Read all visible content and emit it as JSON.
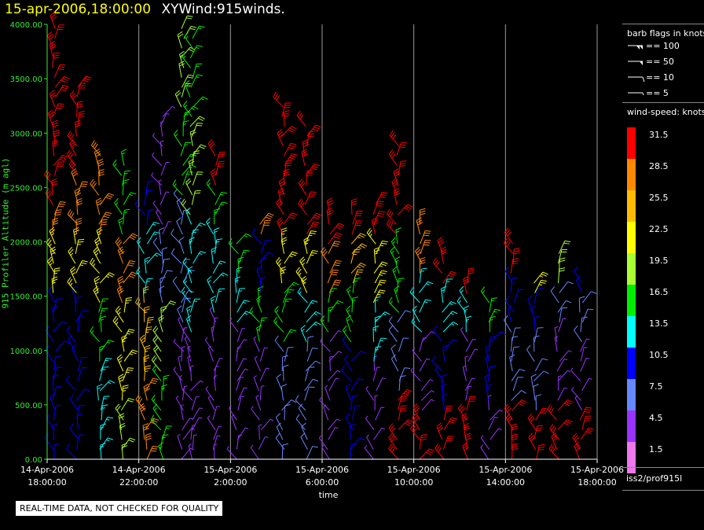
{
  "header": {
    "timestamp": "15-apr-2006,18:00:00",
    "title": "XYWind:915winds."
  },
  "note": "REAL-TIME DATA, NOT CHECKED FOR QUALITY",
  "source_label": "iss2/prof915l",
  "legend": {
    "barb_header": "barb flags in knots",
    "barb_items": [
      {
        "label": "== 100",
        "kind": "flag100"
      },
      {
        "label": "== 50",
        "kind": "flag50"
      },
      {
        "label": "== 10",
        "kind": "barb10"
      },
      {
        "label": "== 5",
        "kind": "barb5"
      }
    ],
    "speed_header": "wind-speed: knots",
    "speed_bins": [
      {
        "label": "31.5",
        "color": "#ff0000"
      },
      {
        "label": "28.5",
        "color": "#ff8800"
      },
      {
        "label": "25.5",
        "color": "#ffbb00"
      },
      {
        "label": "22.5",
        "color": "#ffff00"
      },
      {
        "label": "19.5",
        "color": "#aaff33"
      },
      {
        "label": "16.5",
        "color": "#00ee00"
      },
      {
        "label": "13.5",
        "color": "#00ffff"
      },
      {
        "label": "10.5",
        "color": "#0000ff"
      },
      {
        "label": "7.5",
        "color": "#6688ff"
      },
      {
        "label": "4.5",
        "color": "#9933ff"
      },
      {
        "label": "1.5",
        "color": "#ee77ee"
      }
    ]
  },
  "chart_data": {
    "type": "scatter",
    "subtype": "wind-barb time-height plot",
    "ylabel": "915 Profiler Altitude (m agl)",
    "xlabel": "time",
    "ylim": [
      0,
      4000
    ],
    "yticks": [
      "0.00",
      "500.00",
      "1000.00",
      "1500.00",
      "2000.00",
      "2500.00",
      "3000.00",
      "3500.00",
      "4000.00"
    ],
    "x_range_hours": [
      0,
      24
    ],
    "xticks": [
      {
        "hour": 0,
        "date": "14-Apr-2006",
        "time": "18:00:00"
      },
      {
        "hour": 4,
        "date": "14-Apr-2006",
        "time": "22:00:00"
      },
      {
        "hour": 8,
        "date": "15-Apr-2006",
        "time": "2:00:00"
      },
      {
        "hour": 12,
        "date": "15-Apr-2006",
        "time": "6:00:00"
      },
      {
        "hour": 16,
        "date": "15-Apr-2006",
        "time": "10:00:00"
      },
      {
        "hour": 20,
        "date": "15-Apr-2006",
        "time": "14:00:00"
      },
      {
        "hour": 24,
        "date": "15-Apr-2006",
        "time": "18:00:00"
      }
    ],
    "grid": "vertical lines at x ticks",
    "profile_times_hours": [
      0.3,
      1.3,
      2.3,
      3.3,
      4.3,
      5.0,
      5.9,
      6.3,
      7.3,
      8.3,
      9.3,
      10.3,
      11.3,
      12.3,
      13.3,
      14.3,
      15.3,
      16.3,
      17.3,
      18.3,
      19.3,
      20.3,
      21.3,
      22.3,
      23.3
    ],
    "profiles": [
      {
        "top_m": 4000,
        "bands": [
          [
            0,
            1500,
            10.5
          ],
          [
            1500,
            2000,
            22.5
          ],
          [
            2000,
            2300,
            28.5
          ],
          [
            2300,
            4000,
            31.5
          ]
        ]
      },
      {
        "top_m": 3500,
        "bands": [
          [
            0,
            1500,
            10.5
          ],
          [
            1500,
            2000,
            22.5
          ],
          [
            2000,
            2600,
            28.5
          ],
          [
            2600,
            3500,
            31.5
          ]
        ]
      },
      {
        "top_m": 2800,
        "bands": [
          [
            0,
            900,
            13.5
          ],
          [
            900,
            1400,
            16.5
          ],
          [
            1400,
            2000,
            22.5
          ],
          [
            2000,
            2800,
            28.5
          ]
        ]
      },
      {
        "top_m": 2700,
        "bands": [
          [
            0,
            500,
            19.5
          ],
          [
            500,
            1400,
            22.5
          ],
          [
            1400,
            2000,
            28.5
          ],
          [
            2000,
            2700,
            16.5
          ]
        ]
      },
      {
        "top_m": 2500,
        "bands": [
          [
            0,
            700,
            28.5
          ],
          [
            700,
            1500,
            25.5
          ],
          [
            1500,
            2100,
            13.5
          ],
          [
            2100,
            2500,
            10.5
          ]
        ]
      },
      {
        "top_m": 3200,
        "bands": [
          [
            0,
            800,
            16.5
          ],
          [
            800,
            1400,
            19.5
          ],
          [
            1400,
            2000,
            7.5
          ],
          [
            2000,
            3200,
            4.5
          ]
        ]
      },
      {
        "top_m": 4000,
        "bands": [
          [
            0,
            1200,
            4.5
          ],
          [
            1200,
            2400,
            7.5
          ],
          [
            2400,
            3200,
            16.5
          ],
          [
            3200,
            4000,
            19.5
          ]
        ]
      },
      {
        "top_m": 3900,
        "bands": [
          [
            0,
            1100,
            4.5
          ],
          [
            1100,
            2200,
            13.5
          ],
          [
            2200,
            3100,
            19.5
          ],
          [
            3100,
            3900,
            16.5
          ]
        ]
      },
      {
        "top_m": 2800,
        "bands": [
          [
            0,
            1300,
            4.5
          ],
          [
            1300,
            2100,
            13.5
          ],
          [
            2100,
            2500,
            16.5
          ],
          [
            2500,
            2800,
            31.5
          ]
        ]
      },
      {
        "top_m": 2000,
        "bands": [
          [
            0,
            1200,
            4.5
          ],
          [
            1200,
            1700,
            13.5
          ],
          [
            1700,
            2000,
            16.5
          ]
        ]
      },
      {
        "top_m": 2200,
        "bands": [
          [
            0,
            1000,
            4.5
          ],
          [
            1000,
            1500,
            16.5
          ],
          [
            1500,
            2000,
            10.5
          ],
          [
            2000,
            2200,
            28.5
          ]
        ]
      },
      {
        "top_m": 3300,
        "bands": [
          [
            0,
            1000,
            7.5
          ],
          [
            1000,
            1600,
            16.5
          ],
          [
            1600,
            2000,
            22.5
          ],
          [
            2000,
            3300,
            31.5
          ]
        ]
      },
      {
        "top_m": 3100,
        "bands": [
          [
            0,
            1000,
            7.5
          ],
          [
            1000,
            1500,
            13.5
          ],
          [
            1500,
            2000,
            22.5
          ],
          [
            2000,
            3100,
            31.5
          ]
        ]
      },
      {
        "top_m": 2300,
        "bands": [
          [
            0,
            1100,
            4.5
          ],
          [
            1100,
            1500,
            16.5
          ],
          [
            1500,
            1900,
            28.5
          ],
          [
            1900,
            2300,
            31.5
          ]
        ]
      },
      {
        "top_m": 2300,
        "bands": [
          [
            0,
            1000,
            10.5
          ],
          [
            1000,
            1600,
            16.5
          ],
          [
            1600,
            2000,
            25.5
          ],
          [
            2000,
            2300,
            31.5
          ]
        ]
      },
      {
        "top_m": 2400,
        "bands": [
          [
            0,
            900,
            4.5
          ],
          [
            900,
            1400,
            13.5
          ],
          [
            1400,
            2000,
            22.5
          ],
          [
            2000,
            2400,
            31.5
          ]
        ]
      },
      {
        "top_m": 2900,
        "bands": [
          [
            0,
            600,
            31.5
          ],
          [
            600,
            1300,
            7.5
          ],
          [
            1300,
            2000,
            16.5
          ],
          [
            2000,
            2900,
            31.5
          ]
        ]
      },
      {
        "top_m": 2200,
        "bands": [
          [
            0,
            400,
            31.5
          ],
          [
            400,
            1100,
            4.5
          ],
          [
            1100,
            1700,
            13.5
          ],
          [
            1700,
            2200,
            28.5
          ]
        ]
      },
      {
        "top_m": 1900,
        "bands": [
          [
            0,
            400,
            31.5
          ],
          [
            400,
            1100,
            10.5
          ],
          [
            1100,
            1600,
            13.5
          ],
          [
            1600,
            1900,
            31.5
          ]
        ]
      },
      {
        "top_m": 1700,
        "bands": [
          [
            0,
            500,
            31.5
          ],
          [
            500,
            1100,
            4.5
          ],
          [
            1100,
            1500,
            13.5
          ],
          [
            1500,
            1700,
            31.5
          ]
        ]
      },
      {
        "top_m": 1500,
        "bands": [
          [
            0,
            500,
            4.5
          ],
          [
            500,
            1100,
            10.5
          ],
          [
            1100,
            1500,
            16.5
          ]
        ]
      },
      {
        "top_m": 2000,
        "bands": [
          [
            0,
            500,
            31.5
          ],
          [
            500,
            1200,
            7.5
          ],
          [
            1200,
            1700,
            10.5
          ],
          [
            1700,
            2000,
            31.5
          ]
        ]
      },
      {
        "top_m": 1700,
        "bands": [
          [
            0,
            400,
            31.5
          ],
          [
            400,
            1100,
            7.5
          ],
          [
            1100,
            1500,
            10.5
          ],
          [
            1500,
            1700,
            22.5
          ]
        ]
      },
      {
        "top_m": 1900,
        "bands": [
          [
            0,
            500,
            31.5
          ],
          [
            500,
            1200,
            4.5
          ],
          [
            1200,
            1600,
            7.5
          ],
          [
            1600,
            1900,
            19.5
          ]
        ]
      },
      {
        "top_m": 1700,
        "bands": [
          [
            0,
            400,
            31.5
          ],
          [
            400,
            1000,
            4.5
          ],
          [
            1000,
            1500,
            7.5
          ],
          [
            1500,
            1700,
            10.5
          ]
        ]
      }
    ]
  }
}
